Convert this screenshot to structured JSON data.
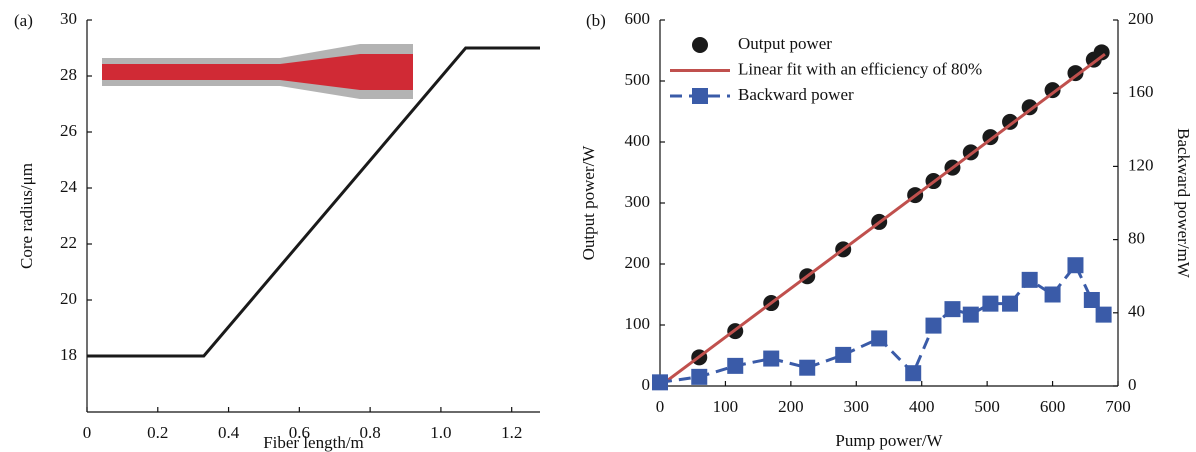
{
  "chart_data": [
    {
      "type": "line",
      "panel_label": "(a)",
      "xlabel": "Fiber length/m",
      "ylabel": "Core radius/μm",
      "x": [
        0,
        0.33,
        1.07,
        1.28
      ],
      "values": [
        18,
        18,
        29,
        29
      ],
      "color": "#1a1a1a",
      "xlim": [
        0,
        1.28
      ],
      "ylim": [
        16,
        30
      ],
      "xticks": [
        0,
        0.2,
        0.4,
        0.6,
        0.8,
        {
          "value": 1,
          "label": "1.0"
        },
        1.2
      ],
      "yticks": [
        18,
        20,
        22,
        24,
        26,
        28,
        30
      ]
    },
    {
      "type": "scatter",
      "panel_label": "(b)",
      "xlabel": "Pump power/W",
      "ylabel": "Output power/W",
      "y2label": "Backward power/mW",
      "xlim": [
        0,
        700
      ],
      "ylim": [
        0,
        600
      ],
      "y2lim": [
        0,
        200
      ],
      "xticks": [
        0,
        100,
        200,
        300,
        400,
        500,
        600,
        700
      ],
      "yticks": [
        0,
        100,
        200,
        300,
        400,
        500,
        600
      ],
      "y2ticks": [
        0,
        40,
        80,
        120,
        160,
        200
      ],
      "legend": "upper left",
      "series": [
        {
          "name": "Output power",
          "color": "#1a1a1a",
          "marker": "circle",
          "line": "none",
          "x": [
            60,
            115,
            170,
            225,
            280,
            335,
            390,
            418,
            447,
            475,
            505,
            535,
            565,
            600,
            635,
            663,
            675
          ],
          "values": [
            47,
            90,
            136,
            180,
            224,
            269,
            313,
            336,
            358,
            383,
            408,
            433,
            457,
            485,
            513,
            535,
            547
          ]
        },
        {
          "name": "Linear fit with an efficiency of 80%",
          "color": "#c0504d",
          "marker": "none",
          "line": "solid",
          "x": [
            0,
            680
          ],
          "values": [
            0,
            544
          ]
        },
        {
          "name": "Backward power",
          "color": "#3a5ba8",
          "marker": "square",
          "line": "dashed",
          "axis": "y2",
          "x": [
            0,
            60,
            115,
            170,
            225,
            280,
            335,
            387,
            418,
            447,
            475,
            505,
            535,
            565,
            600,
            635,
            660,
            678
          ],
          "values": [
            2,
            5,
            11,
            15,
            10,
            17,
            26,
            7,
            33,
            42,
            39,
            45,
            45,
            58,
            50,
            66,
            47,
            39
          ]
        }
      ]
    }
  ]
}
